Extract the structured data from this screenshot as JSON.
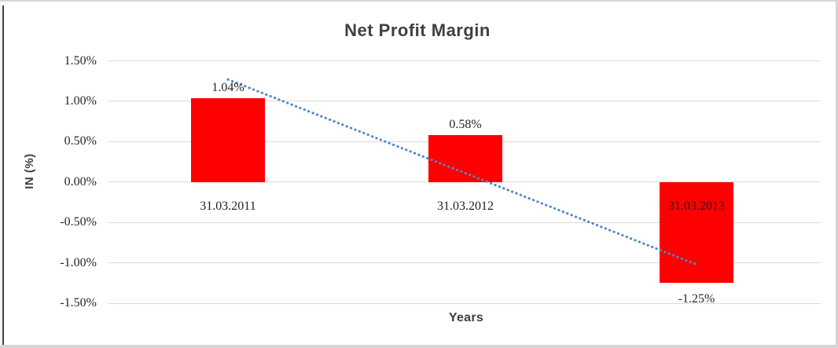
{
  "chart_data": {
    "type": "bar",
    "title": "Net Profit Margin",
    "xlabel": "Years",
    "ylabel": "IN (%)",
    "categories": [
      "31.03.2011",
      "31.03.2012",
      "31.03.2013"
    ],
    "values": [
      1.04,
      0.58,
      -1.25
    ],
    "data_labels": [
      "1.04%",
      "0.58%",
      "-1.25%"
    ],
    "y_ticks": [
      {
        "label": "1.50%",
        "value": 1.5
      },
      {
        "label": "1.00%",
        "value": 1.0
      },
      {
        "label": "0.50%",
        "value": 0.5
      },
      {
        "label": "0.00%",
        "value": 0.0
      },
      {
        "label": "-0.50%",
        "value": -0.5
      },
      {
        "label": "-1.00%",
        "value": -1.0
      },
      {
        "label": "-1.50%",
        "value": -1.5
      }
    ],
    "ylim": [
      -1.5,
      1.5
    ],
    "grid": true,
    "legend": "none",
    "bar_color": "#ff0000",
    "gridline_color": "#d9d9d9",
    "title_color": "#404040",
    "axis_title_color": "#404040",
    "tick_label_color": "#262626",
    "data_label_color": "#262626",
    "category_label_color": "#1f1f1f",
    "trendline": {
      "type": "linear",
      "style": "dotted",
      "color": "#4e87c9",
      "start_value": 1.27,
      "end_value": -1.02
    }
  }
}
